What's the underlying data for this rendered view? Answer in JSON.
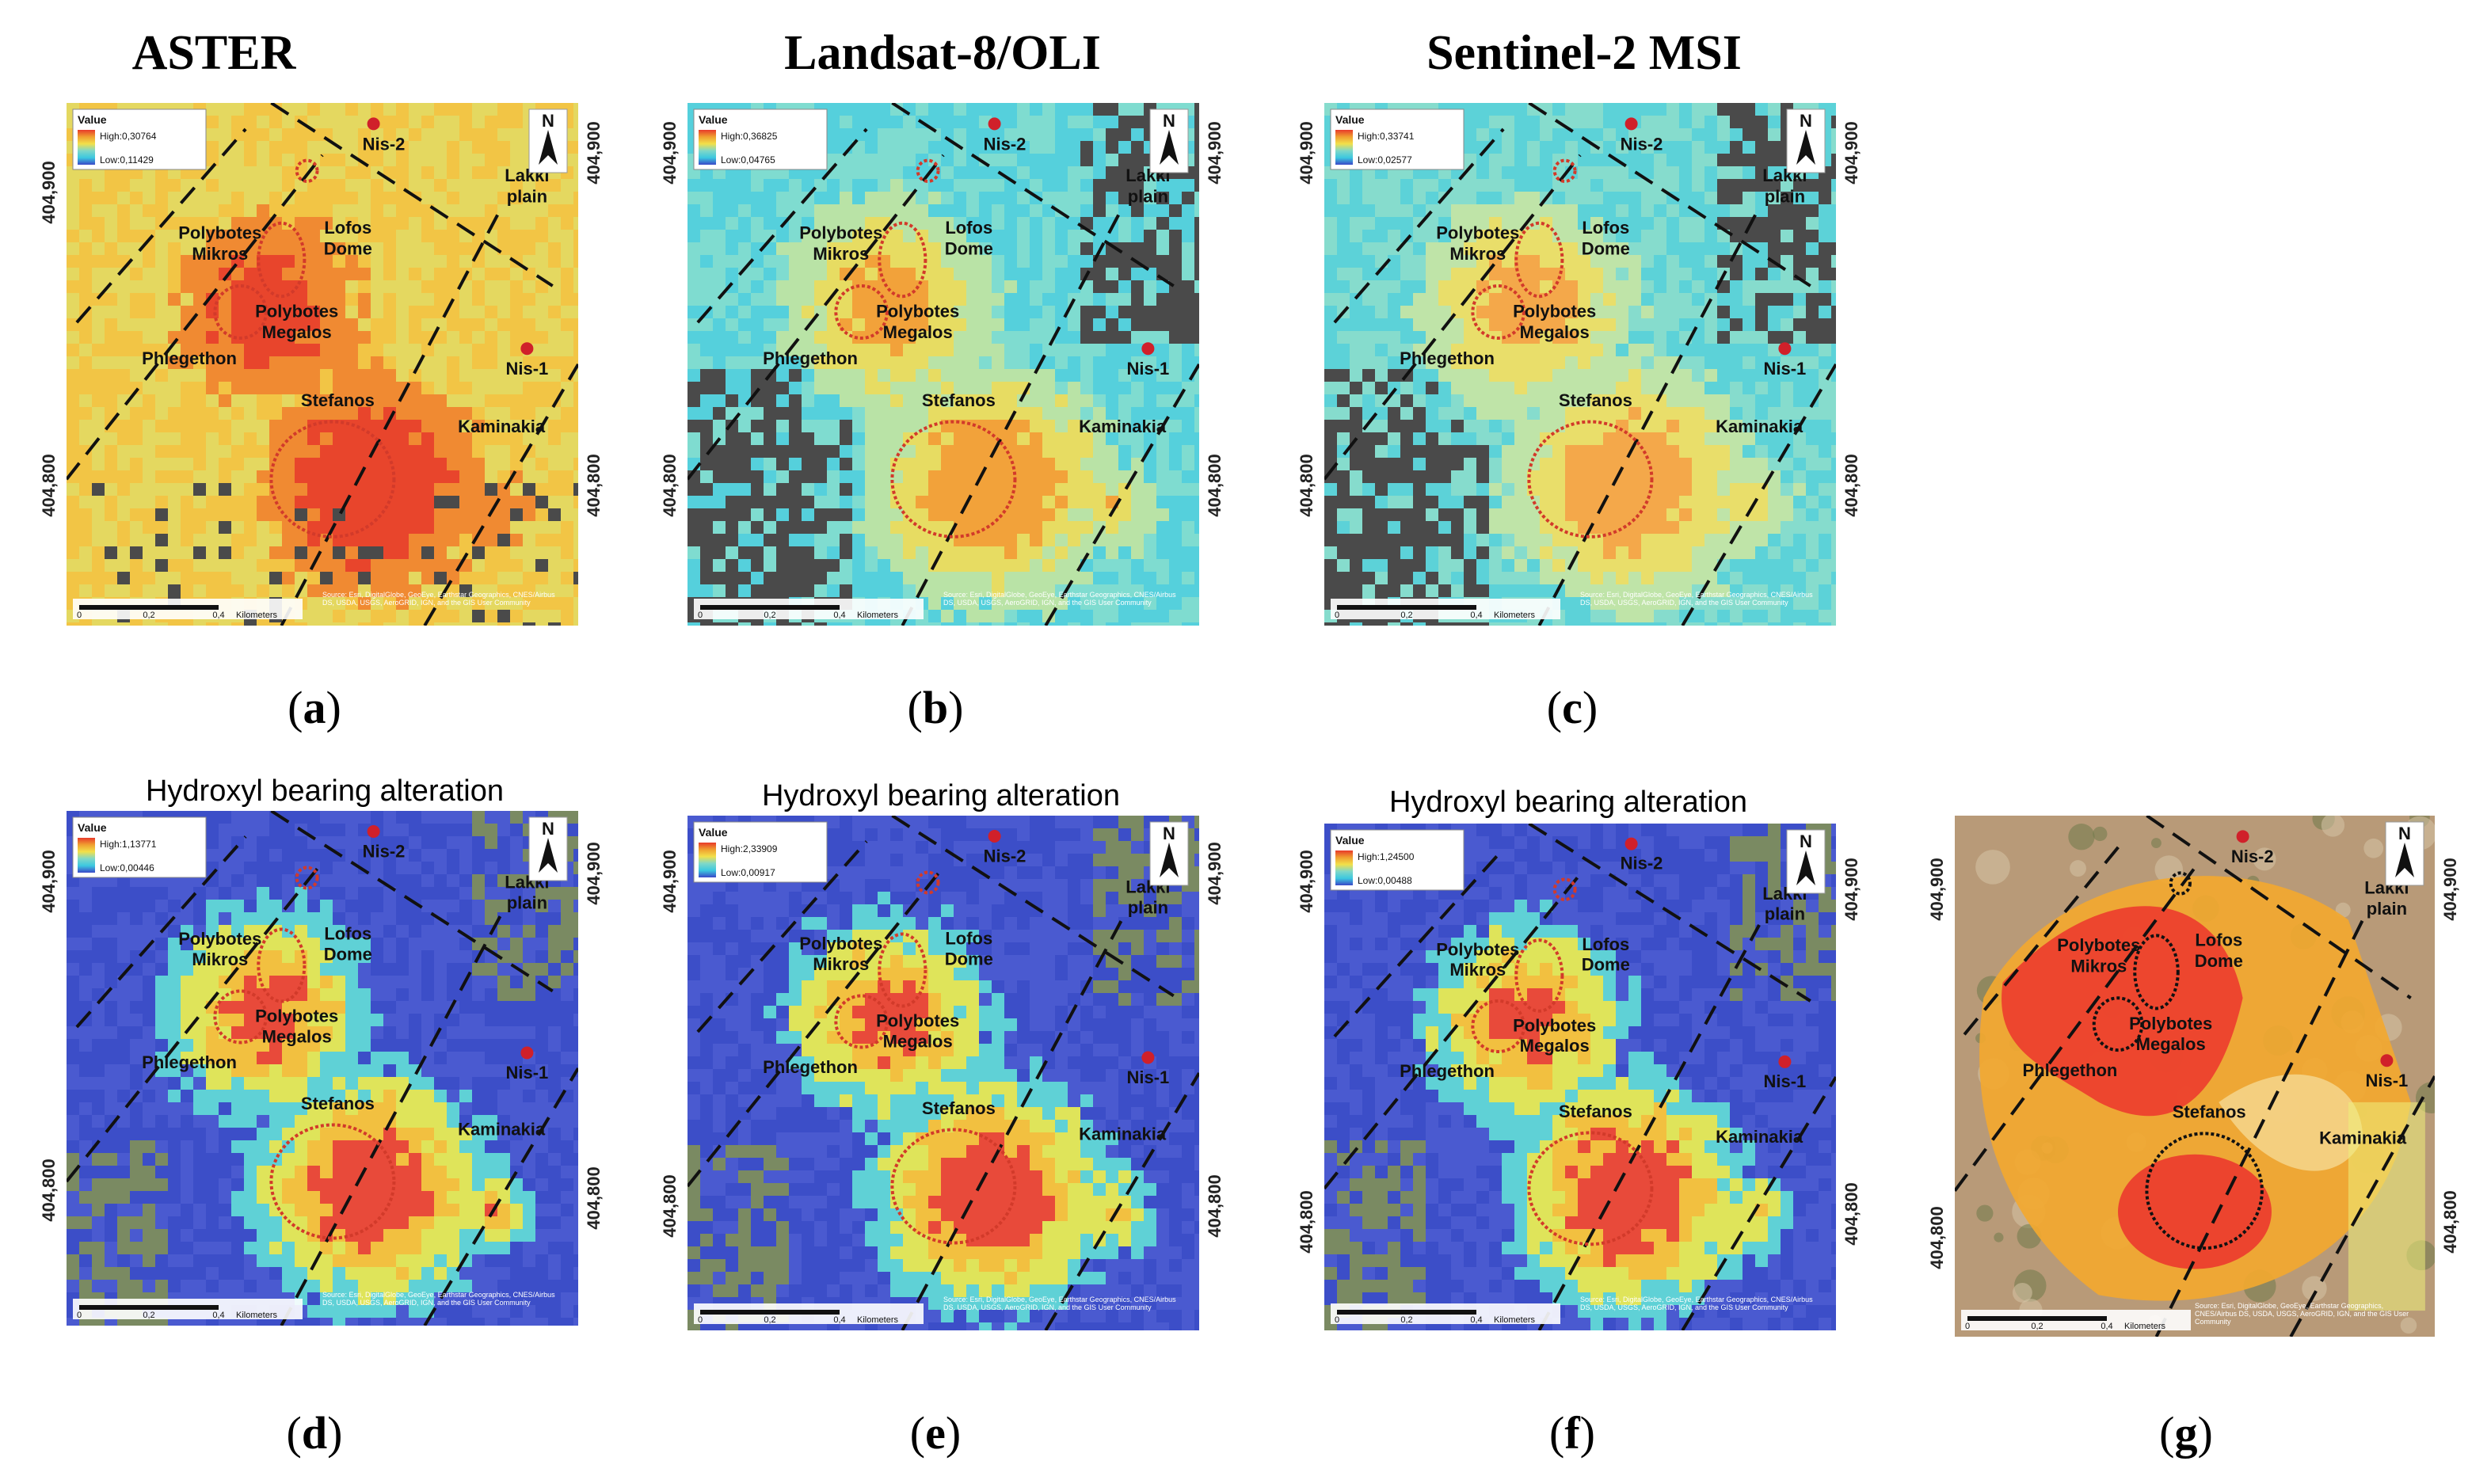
{
  "sensor_titles": [
    "ASTER",
    "Landsat-8/OLI",
    "Sentinel-2 MSI"
  ],
  "row2_title": "Hydroxyl bearing alteration",
  "panel_labels": [
    "a",
    "b",
    "c",
    "d",
    "e",
    "f",
    "g"
  ],
  "legend": {
    "title": "Value",
    "high_prefix": "High:",
    "low_prefix": "Low:",
    "ranges": [
      {
        "panel": "a",
        "high": "0,30764",
        "low": "0,11429"
      },
      {
        "panel": "b",
        "high": "0,36825",
        "low": "0,04765"
      },
      {
        "panel": "c",
        "high": "0,33741",
        "low": "0,02577"
      },
      {
        "panel": "d",
        "high": "1,13771",
        "low": "0,00446"
      },
      {
        "panel": "e",
        "high": "2,33909",
        "low": "0,00917"
      },
      {
        "panel": "f",
        "high": "1,24500",
        "low": "0,00488"
      }
    ]
  },
  "coordinates": {
    "top": "404,900",
    "bottom": "404,800"
  },
  "north_arrow": "N",
  "place_names": {
    "nis2": "Nis-2",
    "nis1": "Nis-1",
    "lakki_1": "Lakki",
    "lakki_2": "plain",
    "lofos_1": "Lofos",
    "lofos_2": "Dome",
    "mikros_1": "Polybotes",
    "mikros_2": "Mikros",
    "megalos_1": "Polybotes",
    "megalos_2": "Megalos",
    "phlegethon": "Phlegethon",
    "stefanos": "Stefanos",
    "kaminakia": "Kaminakia"
  },
  "scale_bar": {
    "ticks": [
      "0",
      "0,2",
      "0,4"
    ],
    "unit": "Kilometers"
  },
  "credits": "Source: Esri, DigitalGlobe, GeoEye, Earthstar Geographics, CNES/Airbus DS, USDA, USGS, AeroGRID, IGN, and the GIS User Community",
  "colors": {
    "high": "#e83a2a",
    "mid_high": "#f0a030",
    "mid": "#f2e04a",
    "mid_low": "#7fd8c8",
    "low": "#3cc8e0",
    "very_low": "#3a48c8",
    "no_data": "#4a4a4a",
    "crater": "#d23a2a",
    "fault": "#111111"
  }
}
